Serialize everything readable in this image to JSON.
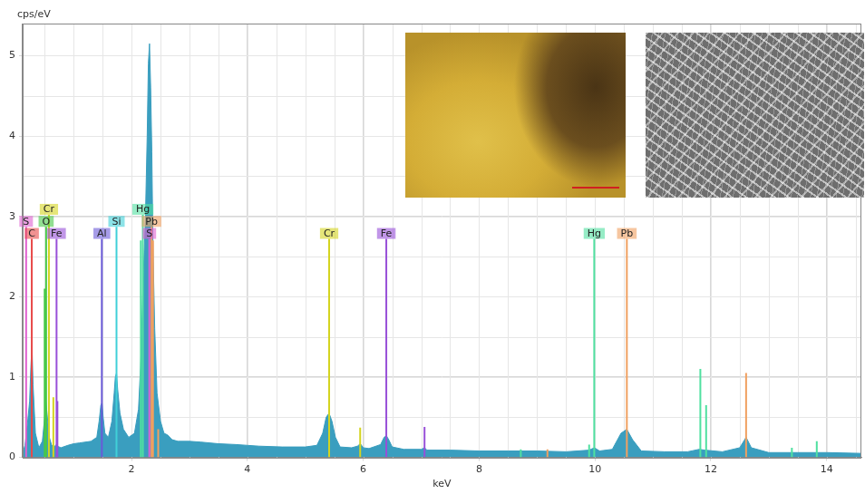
{
  "chart_data": {
    "type": "area",
    "y_label": "cps/eV",
    "x_label": "keV",
    "color": "#3a9ebf",
    "grid": true,
    "xlim": [
      0.12,
      14.6
    ],
    "xticks": [
      2,
      4,
      6,
      8,
      10,
      12,
      14
    ],
    "ylim": [
      0,
      5.4
    ],
    "yticks": [
      0,
      1,
      2,
      3,
      4,
      5
    ],
    "x": [
      0.12,
      0.16,
      0.2,
      0.24,
      0.26,
      0.28,
      0.3,
      0.34,
      0.4,
      0.46,
      0.5,
      0.52,
      0.54,
      0.58,
      0.62,
      0.68,
      0.7,
      0.72,
      0.78,
      0.9,
      1.0,
      1.1,
      1.2,
      1.3,
      1.4,
      1.44,
      1.47,
      1.49,
      1.51,
      1.54,
      1.6,
      1.66,
      1.7,
      1.72,
      1.74,
      1.76,
      1.8,
      1.86,
      1.95,
      2.05,
      2.12,
      2.16,
      2.2,
      2.24,
      2.27,
      2.29,
      2.31,
      2.33,
      2.35,
      2.37,
      2.4,
      2.44,
      2.5,
      2.56,
      2.62,
      2.7,
      2.8,
      3.0,
      3.2,
      3.5,
      3.8,
      4.2,
      4.6,
      5.0,
      5.2,
      5.3,
      5.36,
      5.41,
      5.46,
      5.52,
      5.6,
      5.8,
      5.9,
      5.95,
      6.0,
      6.1,
      6.3,
      6.36,
      6.4,
      6.44,
      6.5,
      6.7,
      7.0,
      7.06,
      7.1,
      7.5,
      8.0,
      8.5,
      9.0,
      9.5,
      9.9,
      9.99,
      10.08,
      10.3,
      10.45,
      10.55,
      10.65,
      10.8,
      11.2,
      11.6,
      11.8,
      11.9,
      12.2,
      12.5,
      12.61,
      12.7,
      13.0,
      13.5,
      14.0,
      14.6
    ],
    "values": [
      0.05,
      0.15,
      0.4,
      0.7,
      1.1,
      1.4,
      0.9,
      0.3,
      0.12,
      0.2,
      0.5,
      0.7,
      0.55,
      0.25,
      0.15,
      0.14,
      0.16,
      0.14,
      0.12,
      0.15,
      0.17,
      0.18,
      0.19,
      0.2,
      0.25,
      0.45,
      0.65,
      0.68,
      0.5,
      0.3,
      0.25,
      0.45,
      0.8,
      1.0,
      1.05,
      0.85,
      0.55,
      0.35,
      0.25,
      0.3,
      0.6,
      1.2,
      2.2,
      3.0,
      4.0,
      4.9,
      5.15,
      4.6,
      3.8,
      2.6,
      1.6,
      0.8,
      0.45,
      0.3,
      0.28,
      0.22,
      0.2,
      0.2,
      0.19,
      0.17,
      0.16,
      0.14,
      0.13,
      0.13,
      0.15,
      0.3,
      0.5,
      0.55,
      0.45,
      0.25,
      0.13,
      0.12,
      0.14,
      0.17,
      0.12,
      0.11,
      0.16,
      0.25,
      0.27,
      0.22,
      0.13,
      0.1,
      0.1,
      0.12,
      0.09,
      0.09,
      0.08,
      0.08,
      0.08,
      0.07,
      0.09,
      0.12,
      0.08,
      0.1,
      0.3,
      0.35,
      0.22,
      0.08,
      0.07,
      0.07,
      0.1,
      0.09,
      0.07,
      0.12,
      0.25,
      0.12,
      0.06,
      0.06,
      0.06,
      0.05
    ],
    "element_markers": [
      {
        "label": "S",
        "energy": 0.18,
        "height": 2.87,
        "color": "#e060d0"
      },
      {
        "label": "C",
        "energy": 0.277,
        "height": 2.72,
        "color": "#e84a4a"
      },
      {
        "label": "Cr",
        "energy": 0.573,
        "height": 3.02,
        "color": "#d4d420"
      },
      {
        "label": "O",
        "energy": 0.525,
        "height": 2.87,
        "color": "#48c848"
      },
      {
        "label": "Fe",
        "energy": 0.705,
        "height": 2.72,
        "color": "#9850d8"
      },
      {
        "label": "Al",
        "energy": 1.487,
        "height": 2.72,
        "color": "#6a5ad8"
      },
      {
        "label": "Si",
        "energy": 1.74,
        "height": 2.87,
        "color": "#40d0d8"
      },
      {
        "label": "Hg",
        "energy": 2.195,
        "height": 3.02,
        "color": "#50e0a0"
      },
      {
        "label": "Pb",
        "energy": 2.345,
        "height": 2.87,
        "color": "#f0a060"
      },
      {
        "label": "S",
        "energy": 2.307,
        "height": 2.72,
        "color": "#e060d0"
      },
      {
        "label": "Cr",
        "energy": 5.411,
        "height": 2.72,
        "color": "#d4d420"
      },
      {
        "label": "Fe",
        "energy": 6.398,
        "height": 2.72,
        "color": "#9850d8"
      },
      {
        "label": "Hg",
        "energy": 9.988,
        "height": 2.72,
        "color": "#50e0a0"
      },
      {
        "label": "Pb",
        "energy": 10.551,
        "height": 2.72,
        "color": "#f0a060"
      }
    ],
    "element_lines": [
      {
        "energy": 0.5,
        "height": 2.1,
        "color": "#48c848"
      },
      {
        "energy": 0.65,
        "height": 0.75,
        "color": "#d4d420"
      },
      {
        "energy": 0.72,
        "height": 0.7,
        "color": "#9850d8"
      },
      {
        "energy": 2.16,
        "height": 2.7,
        "color": "#50e0a0"
      },
      {
        "energy": 2.37,
        "height": 2.7,
        "color": "#f0a060"
      },
      {
        "energy": 2.46,
        "height": 0.35,
        "color": "#f0a060"
      },
      {
        "energy": 5.947,
        "height": 0.37,
        "color": "#d4d420"
      },
      {
        "energy": 7.058,
        "height": 0.38,
        "color": "#9850d8"
      },
      {
        "energy": 8.72,
        "height": 0.1,
        "color": "#50e0a0"
      },
      {
        "energy": 9.18,
        "height": 0.1,
        "color": "#f0a060"
      },
      {
        "energy": 9.9,
        "height": 0.16,
        "color": "#50e0a0"
      },
      {
        "energy": 11.82,
        "height": 1.1,
        "color": "#50e0a0"
      },
      {
        "energy": 11.92,
        "height": 0.65,
        "color": "#50e0a0"
      },
      {
        "energy": 12.61,
        "height": 1.05,
        "color": "#f0a060"
      },
      {
        "energy": 13.4,
        "height": 0.12,
        "color": "#50e0a0"
      },
      {
        "energy": 13.83,
        "height": 0.2,
        "color": "#50e0a0"
      }
    ]
  }
}
